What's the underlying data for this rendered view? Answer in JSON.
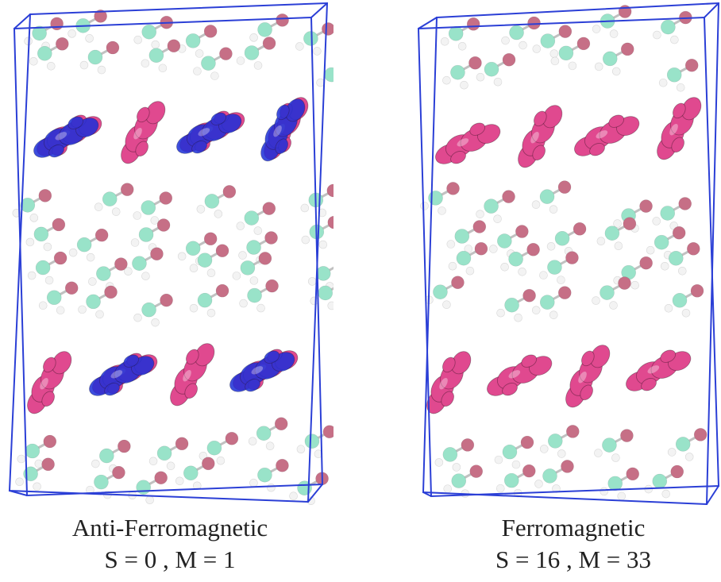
{
  "colors": {
    "cell_box": "#2b3fd6",
    "spin_up": "#e0498f",
    "spin_down": "#1d2fd8",
    "oxygen": "#c0607a",
    "carbon": "#8fe0c4",
    "hydrogen": "#f2f2f2"
  },
  "panels": [
    {
      "caption_title": "Anti-Ferromagnetic",
      "caption_values": "S = 0 , M = 1",
      "ordering": "antiferromagnetic"
    },
    {
      "caption_title": "Ferromagnetic",
      "caption_values": "S = 16 , M = 33",
      "ordering": "ferromagnetic"
    }
  ]
}
